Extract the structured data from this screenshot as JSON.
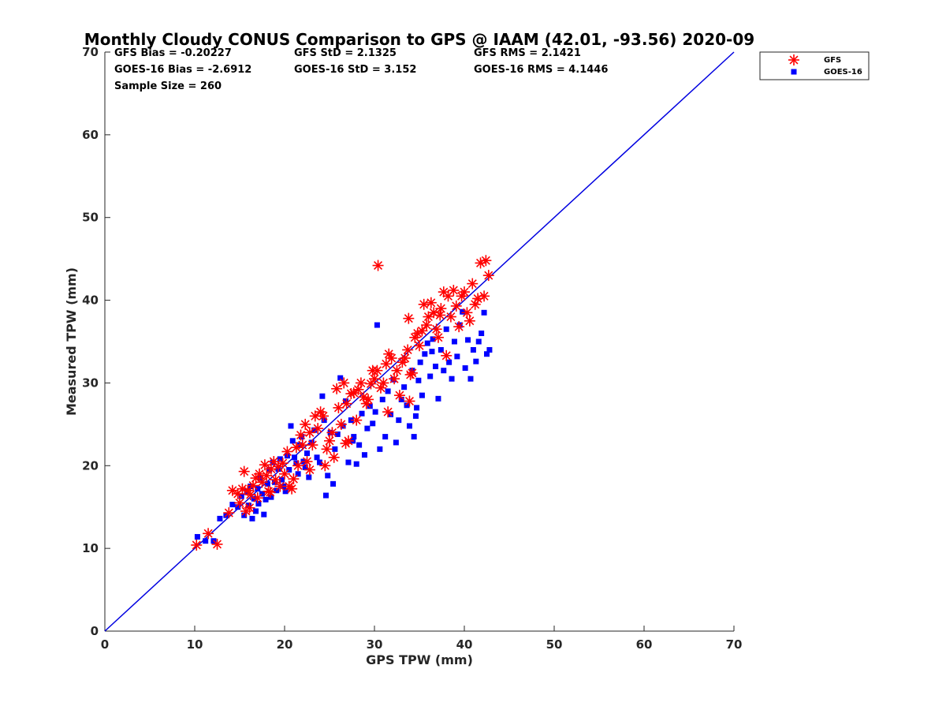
{
  "chart_data": {
    "type": "scatter",
    "title": "Monthly Cloudy CONUS Comparison to GPS @ IAAM (42.01, -93.56) 2020-09",
    "xlabel": "GPS TPW (mm)",
    "ylabel": "Measured TPW (mm)",
    "xlim": [
      0,
      70
    ],
    "ylim": [
      0,
      70
    ],
    "xticks": [
      "0",
      "10",
      "20",
      "30",
      "40",
      "50",
      "60",
      "70"
    ],
    "yticks": [
      "0",
      "10",
      "20",
      "30",
      "40",
      "50",
      "60",
      "70"
    ],
    "grid": false,
    "legend_position": "top-right",
    "stats": {
      "gfs_bias": "GFS Bias = -0.20227",
      "goes_bias": "GOES-16 Bias = -2.6912",
      "sample_size": "Sample Size = 260",
      "gfs_std": "GFS StD = 2.1325",
      "goes_std": "GOES-16 StD = 3.152",
      "gfs_rms": "GFS RMS = 2.1421",
      "goes_rms": "GOES-16 RMS = 4.1446"
    },
    "reference_line": {
      "x": [
        0,
        70
      ],
      "y": [
        0,
        70
      ],
      "color": "#0000e0"
    },
    "series": [
      {
        "name": "GFS",
        "marker": "asterisk",
        "color": "#ff0000",
        "points": [
          [
            10.2,
            10.4
          ],
          [
            11.5,
            11.8
          ],
          [
            12.5,
            10.5
          ],
          [
            13.8,
            14.3
          ],
          [
            14.2,
            17.0
          ],
          [
            14.8,
            16.6
          ],
          [
            15.0,
            15.5
          ],
          [
            15.3,
            17.2
          ],
          [
            15.5,
            19.3
          ],
          [
            15.7,
            14.5
          ],
          [
            15.9,
            17.0
          ],
          [
            16.2,
            16.5
          ],
          [
            16.5,
            17.6
          ],
          [
            16.8,
            18.5
          ],
          [
            17.0,
            16.1
          ],
          [
            17.2,
            19.0
          ],
          [
            17.5,
            18.0
          ],
          [
            17.8,
            20.1
          ],
          [
            18.0,
            18.8
          ],
          [
            18.2,
            16.9
          ],
          [
            18.5,
            19.6
          ],
          [
            18.8,
            20.5
          ],
          [
            19.0,
            18.3
          ],
          [
            19.3,
            19.9
          ],
          [
            19.5,
            17.5
          ],
          [
            19.8,
            20.3
          ],
          [
            20.0,
            19.0
          ],
          [
            20.3,
            21.7
          ],
          [
            20.5,
            17.5
          ],
          [
            20.8,
            17.2
          ],
          [
            21.0,
            18.4
          ],
          [
            21.3,
            22.2
          ],
          [
            21.5,
            20.0
          ],
          [
            21.8,
            23.7
          ],
          [
            22.0,
            22.5
          ],
          [
            22.3,
            25.0
          ],
          [
            22.5,
            20.5
          ],
          [
            22.8,
            24.0
          ],
          [
            23.1,
            22.5
          ],
          [
            23.4,
            26.0
          ],
          [
            23.7,
            24.5
          ],
          [
            24.0,
            26.5
          ],
          [
            24.3,
            26.0
          ],
          [
            24.5,
            20.0
          ],
          [
            24.7,
            22.0
          ],
          [
            25.0,
            23.0
          ],
          [
            25.3,
            24.0
          ],
          [
            25.5,
            21.0
          ],
          [
            25.8,
            29.3
          ],
          [
            26.0,
            27.0
          ],
          [
            26.3,
            25.0
          ],
          [
            26.6,
            30.0
          ],
          [
            26.9,
            27.5
          ],
          [
            27.1,
            23.0
          ],
          [
            27.4,
            28.7
          ],
          [
            27.7,
            28.8
          ],
          [
            28.0,
            25.5
          ],
          [
            28.2,
            29.2
          ],
          [
            28.5,
            30.0
          ],
          [
            28.8,
            28.3
          ],
          [
            29.1,
            27.5
          ],
          [
            29.3,
            28.0
          ],
          [
            29.6,
            29.9
          ],
          [
            30.0,
            30.5
          ],
          [
            30.3,
            31.5
          ],
          [
            30.4,
            44.2
          ],
          [
            30.7,
            29.4
          ],
          [
            31.0,
            30.0
          ],
          [
            31.3,
            32.3
          ],
          [
            31.6,
            33.5
          ],
          [
            31.9,
            33.0
          ],
          [
            32.2,
            30.5
          ],
          [
            32.5,
            31.5
          ],
          [
            32.8,
            28.5
          ],
          [
            33.1,
            32.5
          ],
          [
            33.4,
            33.0
          ],
          [
            33.7,
            34.0
          ],
          [
            33.9,
            27.8
          ],
          [
            34.2,
            31.2
          ],
          [
            34.5,
            35.5
          ],
          [
            34.8,
            36.0
          ],
          [
            35.0,
            34.5
          ],
          [
            35.3,
            36.3
          ],
          [
            35.5,
            39.5
          ],
          [
            35.8,
            37.0
          ],
          [
            36.0,
            38.0
          ],
          [
            36.3,
            39.7
          ],
          [
            36.6,
            38.5
          ],
          [
            36.9,
            36.5
          ],
          [
            37.1,
            35.5
          ],
          [
            37.4,
            39.0
          ],
          [
            37.7,
            41.0
          ],
          [
            38.0,
            33.3
          ],
          [
            38.2,
            40.5
          ],
          [
            38.5,
            38.0
          ],
          [
            38.8,
            41.2
          ],
          [
            39.1,
            39.3
          ],
          [
            39.4,
            36.8
          ],
          [
            39.7,
            40.5
          ],
          [
            40.0,
            41.0
          ],
          [
            40.3,
            38.5
          ],
          [
            40.6,
            37.5
          ],
          [
            40.9,
            42.0
          ],
          [
            41.2,
            39.5
          ],
          [
            41.5,
            40.2
          ],
          [
            41.8,
            44.5
          ],
          [
            42.2,
            40.5
          ],
          [
            42.4,
            44.8
          ],
          [
            42.7,
            43.0
          ],
          [
            33.8,
            37.8
          ],
          [
            34.0,
            31.0
          ],
          [
            31.5,
            26.5
          ],
          [
            22.8,
            19.5
          ],
          [
            18.4,
            16.8
          ],
          [
            16.1,
            14.9
          ],
          [
            26.8,
            22.7
          ],
          [
            29.8,
            31.5
          ],
          [
            37.3,
            38.2
          ]
        ]
      },
      {
        "name": "GOES-16",
        "marker": "square",
        "color": "#0000ff",
        "points": [
          [
            10.3,
            11.4
          ],
          [
            11.2,
            10.9
          ],
          [
            12.1,
            10.9
          ],
          [
            12.8,
            13.6
          ],
          [
            13.5,
            14.0
          ],
          [
            14.2,
            15.3
          ],
          [
            14.8,
            15.0
          ],
          [
            15.2,
            16.3
          ],
          [
            15.5,
            14.0
          ],
          [
            15.8,
            16.8
          ],
          [
            16.0,
            15.2
          ],
          [
            16.2,
            17.5
          ],
          [
            16.4,
            13.6
          ],
          [
            16.6,
            16.0
          ],
          [
            16.8,
            14.5
          ],
          [
            17.0,
            17.2
          ],
          [
            17.1,
            15.4
          ],
          [
            17.3,
            18.5
          ],
          [
            17.5,
            16.6
          ],
          [
            17.7,
            14.1
          ],
          [
            17.9,
            15.9
          ],
          [
            18.1,
            17.8
          ],
          [
            18.3,
            19.5
          ],
          [
            18.5,
            16.2
          ],
          [
            18.7,
            20.4
          ],
          [
            18.9,
            18.0
          ],
          [
            19.1,
            17.0
          ],
          [
            19.3,
            19.6
          ],
          [
            19.5,
            20.8
          ],
          [
            19.7,
            18.3
          ],
          [
            19.9,
            17.5
          ],
          [
            20.1,
            16.9
          ],
          [
            20.3,
            21.2
          ],
          [
            20.5,
            19.5
          ],
          [
            20.7,
            24.8
          ],
          [
            20.9,
            23.0
          ],
          [
            21.1,
            21.0
          ],
          [
            21.3,
            20.3
          ],
          [
            21.5,
            19.0
          ],
          [
            21.7,
            22.5
          ],
          [
            21.9,
            23.5
          ],
          [
            22.1,
            20.5
          ],
          [
            22.3,
            19.8
          ],
          [
            22.5,
            21.5
          ],
          [
            22.7,
            18.6
          ],
          [
            23.0,
            22.8
          ],
          [
            23.3,
            24.3
          ],
          [
            23.6,
            21.0
          ],
          [
            23.9,
            20.4
          ],
          [
            24.2,
            28.4
          ],
          [
            24.4,
            25.5
          ],
          [
            24.6,
            16.4
          ],
          [
            24.8,
            18.8
          ],
          [
            25.1,
            24.0
          ],
          [
            25.4,
            17.8
          ],
          [
            25.6,
            22.0
          ],
          [
            25.9,
            23.8
          ],
          [
            26.2,
            30.6
          ],
          [
            26.5,
            24.8
          ],
          [
            26.8,
            27.8
          ],
          [
            27.1,
            20.4
          ],
          [
            27.4,
            25.5
          ],
          [
            27.7,
            23.5
          ],
          [
            28.0,
            20.2
          ],
          [
            28.3,
            22.5
          ],
          [
            28.6,
            26.3
          ],
          [
            28.9,
            21.3
          ],
          [
            29.2,
            24.5
          ],
          [
            29.5,
            27.2
          ],
          [
            29.8,
            25.1
          ],
          [
            30.1,
            26.5
          ],
          [
            30.3,
            37.0
          ],
          [
            30.6,
            22.0
          ],
          [
            30.9,
            28.0
          ],
          [
            31.2,
            23.5
          ],
          [
            31.5,
            29.0
          ],
          [
            31.8,
            26.2
          ],
          [
            32.1,
            30.4
          ],
          [
            32.4,
            22.8
          ],
          [
            32.7,
            25.5
          ],
          [
            33.0,
            28.0
          ],
          [
            33.3,
            29.5
          ],
          [
            33.6,
            27.3
          ],
          [
            33.9,
            24.8
          ],
          [
            34.2,
            31.5
          ],
          [
            34.4,
            23.5
          ],
          [
            34.6,
            26.0
          ],
          [
            34.9,
            30.3
          ],
          [
            35.1,
            32.5
          ],
          [
            35.3,
            28.5
          ],
          [
            35.6,
            33.5
          ],
          [
            35.9,
            34.8
          ],
          [
            36.2,
            30.8
          ],
          [
            36.5,
            35.3
          ],
          [
            36.8,
            32.0
          ],
          [
            37.1,
            28.1
          ],
          [
            37.4,
            34.0
          ],
          [
            37.7,
            31.5
          ],
          [
            38.0,
            36.5
          ],
          [
            38.3,
            32.5
          ],
          [
            38.6,
            30.5
          ],
          [
            38.9,
            35.0
          ],
          [
            39.2,
            33.2
          ],
          [
            39.5,
            37.0
          ],
          [
            39.8,
            38.6
          ],
          [
            40.1,
            31.8
          ],
          [
            40.4,
            35.2
          ],
          [
            40.7,
            30.5
          ],
          [
            41.0,
            34.0
          ],
          [
            41.3,
            32.6
          ],
          [
            41.6,
            35.0
          ],
          [
            41.9,
            36.0
          ],
          [
            42.2,
            38.5
          ],
          [
            42.5,
            33.5
          ],
          [
            42.8,
            34.0
          ],
          [
            36.4,
            33.8
          ],
          [
            34.7,
            27.0
          ],
          [
            27.6,
            23.0
          ]
        ]
      }
    ]
  }
}
